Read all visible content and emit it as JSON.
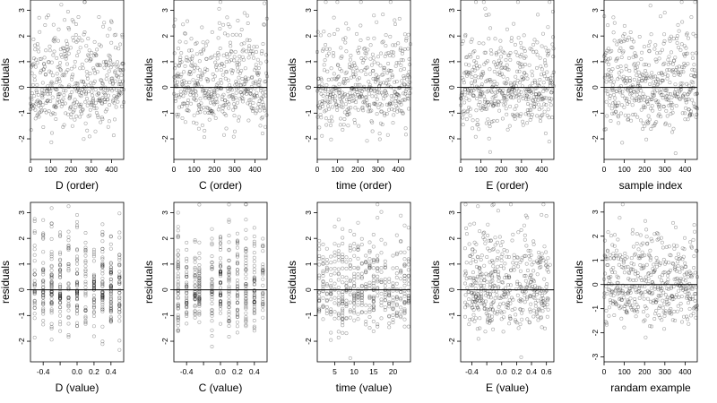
{
  "chart_data": [
    {
      "type": "scatter",
      "title": "",
      "xlabel": "D (order)",
      "ylabel": "residuals",
      "xlim": [
        0,
        460
      ],
      "ylim": [
        -2.8,
        3.4
      ],
      "xticks": [
        0,
        100,
        200,
        300,
        400
      ],
      "yticks": [
        -2,
        -1,
        0,
        1,
        2,
        3
      ],
      "ytick_labels": [
        "-2",
        "-1",
        "0",
        "1",
        "2",
        "3"
      ],
      "reference_line_y": 0,
      "point_style": "open circles, semi-transparent",
      "x_distribution": "index",
      "n_points": 460,
      "spread": 1.0,
      "seed": 11
    },
    {
      "type": "scatter",
      "title": "",
      "xlabel": "C (order)",
      "ylabel": "residuals",
      "xlim": [
        0,
        460
      ],
      "ylim": [
        -2.8,
        3.4
      ],
      "xticks": [
        0,
        100,
        200,
        300,
        400
      ],
      "yticks": [
        -2,
        -1,
        0,
        1,
        2,
        3
      ],
      "ytick_labels": [
        "-2",
        "-1",
        "0",
        "1",
        "2",
        "3"
      ],
      "reference_line_y": 0,
      "point_style": "open circles, semi-transparent",
      "x_distribution": "index",
      "n_points": 460,
      "spread": 1.0,
      "seed": 23
    },
    {
      "type": "scatter",
      "title": "",
      "xlabel": "time (order)",
      "ylabel": "residuals",
      "xlim": [
        0,
        460
      ],
      "ylim": [
        -2.8,
        3.4
      ],
      "xticks": [
        0,
        100,
        200,
        300,
        400
      ],
      "yticks": [
        -2,
        -1,
        0,
        1,
        2,
        3
      ],
      "ytick_labels": [
        "-2",
        "-1",
        "0",
        "1",
        "2",
        "3"
      ],
      "reference_line_y": 0,
      "point_style": "open circles, semi-transparent",
      "x_distribution": "index",
      "n_points": 460,
      "spread": 1.0,
      "seed": 37
    },
    {
      "type": "scatter",
      "title": "",
      "xlabel": "E (order)",
      "ylabel": "residuals",
      "xlim": [
        0,
        460
      ],
      "ylim": [
        -2.8,
        3.4
      ],
      "xticks": [
        0,
        100,
        200,
        300,
        400
      ],
      "yticks": [
        -2,
        -1,
        0,
        1,
        2,
        3
      ],
      "ytick_labels": [
        "-2",
        "-1",
        "0",
        "1",
        "2",
        "3"
      ],
      "reference_line_y": 0,
      "point_style": "open circles, semi-transparent",
      "x_distribution": "index",
      "n_points": 460,
      "spread": 1.0,
      "seed": 41
    },
    {
      "type": "scatter",
      "title": "",
      "xlabel": "sample index",
      "ylabel": "residuals",
      "xlim": [
        0,
        460
      ],
      "ylim": [
        -2.8,
        3.4
      ],
      "xticks": [
        0,
        100,
        200,
        300,
        400
      ],
      "yticks": [
        -2,
        -1,
        0,
        1,
        2,
        3
      ],
      "ytick_labels": [
        "-2",
        "-1",
        "0",
        "1",
        "2",
        "3"
      ],
      "reference_line_y": 0,
      "point_style": "open circles, semi-transparent",
      "x_distribution": "index",
      "n_points": 460,
      "spread": 1.0,
      "seed": 53
    },
    {
      "type": "scatter",
      "title": "",
      "xlabel": "D (value)",
      "ylabel": "residuals",
      "xlim": [
        -0.55,
        0.55
      ],
      "ylim": [
        -2.8,
        3.4
      ],
      "xticks": [
        -0.4,
        -0.2,
        0.0,
        0.2,
        0.4
      ],
      "xtick_labels": [
        "-0.4",
        "",
        "0.0",
        "0.2",
        "0.4"
      ],
      "yticks": [
        -2,
        -1,
        0,
        1,
        2,
        3
      ],
      "ytick_labels": [
        "-2",
        "-1",
        "0",
        "1",
        "2",
        "3"
      ],
      "reference_line_y": 0,
      "point_style": "open circles, semi-transparent",
      "x_distribution": "discrete",
      "x_levels": [
        -0.5,
        -0.4,
        -0.3,
        -0.2,
        -0.1,
        0.0,
        0.1,
        0.2,
        0.3,
        0.4,
        0.5
      ],
      "n_points": 460,
      "spread": 1.0,
      "seed": 61
    },
    {
      "type": "scatter",
      "title": "",
      "xlabel": "C (value)",
      "ylabel": "residuals",
      "xlim": [
        -0.55,
        0.55
      ],
      "ylim": [
        -2.8,
        3.4
      ],
      "xticks": [
        -0.4,
        -0.2,
        0.0,
        0.2,
        0.4
      ],
      "xtick_labels": [
        "-0.4",
        "",
        "0.0",
        "0.2",
        "0.4"
      ],
      "yticks": [
        -2,
        -1,
        0,
        1,
        2,
        3
      ],
      "ytick_labels": [
        "-2",
        "-1",
        "0",
        "1",
        "2",
        "3"
      ],
      "reference_line_y": 0,
      "point_style": "open circles, semi-transparent",
      "x_distribution": "discrete",
      "x_levels": [
        -0.5,
        -0.4,
        -0.3,
        -0.25,
        -0.1,
        0.0,
        0.1,
        0.2,
        0.3,
        0.4,
        0.5
      ],
      "n_points": 460,
      "spread": 1.0,
      "seed": 71
    },
    {
      "type": "scatter",
      "title": "",
      "xlabel": "time (value)",
      "ylabel": "residuals",
      "xlim": [
        0.5,
        24.5
      ],
      "ylim": [
        -2.8,
        3.4
      ],
      "xticks": [
        5,
        10,
        15,
        20
      ],
      "xtick_labels": [
        "5",
        "10",
        "15",
        "20"
      ],
      "yticks": [
        -2,
        -1,
        0,
        1,
        2,
        3
      ],
      "ytick_labels": [
        "-2",
        "-1",
        "0",
        "1",
        "2",
        "3"
      ],
      "reference_line_y": 0,
      "point_style": "open circles, semi-transparent",
      "x_distribution": "discrete",
      "x_levels": [
        1,
        2,
        3,
        4,
        5,
        6,
        7,
        8,
        9,
        10,
        11,
        12,
        13,
        14,
        15,
        16,
        17,
        18,
        19,
        20,
        21,
        22,
        23,
        24
      ],
      "n_points": 460,
      "spread": 1.0,
      "seed": 83
    },
    {
      "type": "scatter",
      "title": "",
      "xlabel": "E (value)",
      "ylabel": "residuals",
      "xlim": [
        -0.55,
        0.7
      ],
      "ylim": [
        -2.8,
        3.4
      ],
      "xticks": [
        -0.4,
        -0.2,
        0.0,
        0.2,
        0.4,
        0.6
      ],
      "xtick_labels": [
        "-0.4",
        "",
        "0.0",
        "0.2",
        "0.4",
        "0.6"
      ],
      "yticks": [
        -2,
        -1,
        0,
        1,
        2,
        3
      ],
      "ytick_labels": [
        "-2",
        "-1",
        "0",
        "1",
        "2",
        "3"
      ],
      "reference_line_y": 0,
      "point_style": "open circles, semi-transparent",
      "x_distribution": "continuous",
      "n_points": 460,
      "spread": 1.0,
      "seed": 97
    },
    {
      "type": "scatter",
      "title": "",
      "xlabel": "randam example",
      "ylabel": "residuals",
      "xlim": [
        0,
        460
      ],
      "ylim": [
        -3.2,
        3.4
      ],
      "xticks": [
        0,
        100,
        200,
        300,
        400
      ],
      "yticks": [
        -3,
        -2,
        -1,
        0,
        1,
        2,
        3
      ],
      "ytick_labels": [
        "-3",
        "-2",
        "-1",
        "0",
        "1",
        "2",
        "3"
      ],
      "reference_line_y": 0,
      "point_style": "open circles, semi-transparent",
      "x_distribution": "index",
      "n_points": 460,
      "spread": 1.0,
      "seed": 101
    }
  ]
}
